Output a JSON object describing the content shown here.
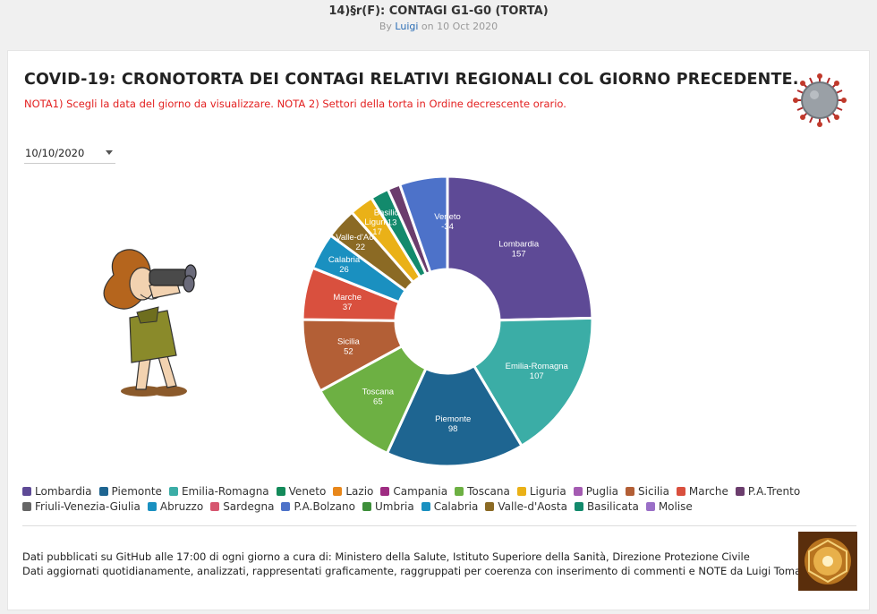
{
  "header": {
    "doc_title": "14)§r(F): CONTAGI G1-G0 (TORTA)",
    "by_prefix": "By ",
    "author": "Luigi",
    "date_text": " on 10 Oct 2020"
  },
  "card": {
    "title": "COVID-19: CRONOTORTA DEI CONTAGI RELATIVI REGIONALI COL GIORNO PRECEDENTE.",
    "note": "NOTA1) Scegli la data del giorno da visualizzare. NOTA 2) Settori della torta in Ordine decrescente orario.",
    "date_value": "10/10/2020"
  },
  "chart_data": {
    "type": "pie",
    "donut": true,
    "slices": [
      {
        "label": "Lombardia",
        "value": 157,
        "color": "#5e4a96"
      },
      {
        "label": "Emilia-Romagna",
        "value": 107,
        "color": "#3bada6"
      },
      {
        "label": "Piemonte",
        "value": 98,
        "color": "#1e6591"
      },
      {
        "label": "Toscana",
        "value": 65,
        "color": "#6db043"
      },
      {
        "label": "Sicilia",
        "value": 52,
        "color": "#b35f36"
      },
      {
        "label": "Marche",
        "value": 37,
        "color": "#d9503e"
      },
      {
        "label": "Calabria",
        "value": 26,
        "color": "#1a90c0"
      },
      {
        "label": "Valle-d'Aosta",
        "value": 22,
        "color": "#8b6a24"
      },
      {
        "label": "Liguria",
        "value": 17,
        "color": "#eab117"
      },
      {
        "label": "Basilicata",
        "value": 13,
        "color": "#138a6c"
      },
      {
        "label": "P.A.Trento",
        "value": 9,
        "color": "#6b3d6d"
      },
      {
        "label": "Veneto",
        "value": -34,
        "color": "#4d72c9"
      }
    ]
  },
  "legend": [
    {
      "label": "Lombardia",
      "color": "#5e4a96"
    },
    {
      "label": "Piemonte",
      "color": "#1e6591"
    },
    {
      "label": "Emilia-Romagna",
      "color": "#3bada6"
    },
    {
      "label": "Veneto",
      "color": "#138a5a"
    },
    {
      "label": "Lazio",
      "color": "#e8871a"
    },
    {
      "label": "Campania",
      "color": "#9e2c82"
    },
    {
      "label": "Toscana",
      "color": "#6db043"
    },
    {
      "label": "Liguria",
      "color": "#eab117"
    },
    {
      "label": "Puglia",
      "color": "#a45bb2"
    },
    {
      "label": "Sicilia",
      "color": "#b35f36"
    },
    {
      "label": "Marche",
      "color": "#d9503e"
    },
    {
      "label": "P.A.Trento",
      "color": "#6b3d6d"
    },
    {
      "label": "Friuli-Venezia-Giulia",
      "color": "#666666"
    },
    {
      "label": "Abruzzo",
      "color": "#1a90c0"
    },
    {
      "label": "Sardegna",
      "color": "#d6566f"
    },
    {
      "label": "P.A.Bolzano",
      "color": "#4d72c9"
    },
    {
      "label": "Umbria",
      "color": "#3d8f3a"
    },
    {
      "label": "Calabria",
      "color": "#1a90c0"
    },
    {
      "label": "Valle-d'Aosta",
      "color": "#8b6a24"
    },
    {
      "label": "Basilicata",
      "color": "#138a6c"
    },
    {
      "label": "Molise",
      "color": "#9a6fc7"
    }
  ],
  "footer": {
    "line1": "Dati pubblicati su GitHub alle 17:00 di ogni giorno a cura di: Ministero della Salute, Istituto Superiore della Sanità, Direzione Protezione Civile",
    "line2": "Dati aggiornati quotidianamente, analizzati, rappresentati graficamente, raggruppati per coerenza con inserimento di commenti e NOTE da Luigi Tomaselli"
  }
}
